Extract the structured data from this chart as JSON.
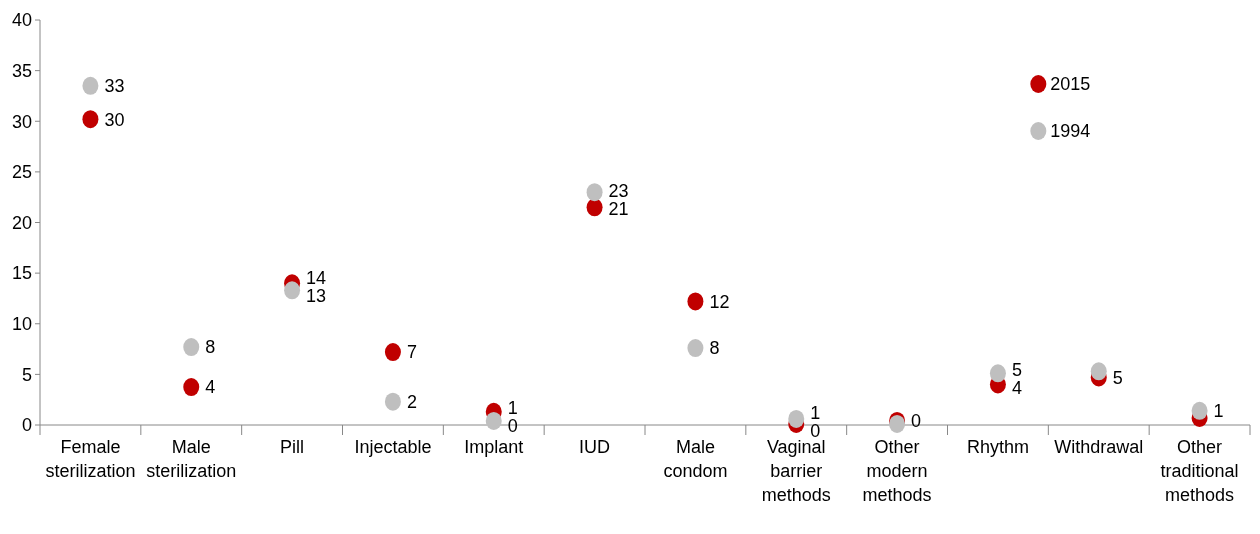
{
  "chart_data": {
    "type": "scatter",
    "categories": [
      "Female sterilization",
      "Male sterilization",
      "Pill",
      "Injectable",
      "Implant",
      "IUD",
      "Male condom",
      "Vaginal barrier methods",
      "Other modern methods",
      "Rhythm",
      "Withdrawal",
      "Other traditional methods"
    ],
    "series": [
      {
        "name": "2015",
        "color": "#c00000",
        "values": [
          30.2,
          3.75,
          14.0,
          7.2,
          1.3,
          21.5,
          12.2,
          0.1,
          0.4,
          4.0,
          4.7,
          0.7
        ],
        "value_labels": [
          "30",
          "4",
          "14",
          "7",
          "1",
          "21",
          "12",
          "0",
          "0",
          "4",
          "5",
          null
        ]
      },
      {
        "name": "1994",
        "color": "#bfbfbf",
        "values": [
          33.5,
          7.7,
          13.3,
          2.3,
          0.4,
          23.0,
          7.6,
          0.6,
          0.1,
          5.1,
          5.3,
          1.4
        ],
        "value_labels": [
          "33",
          "8",
          "13",
          "2",
          "0",
          "23",
          "8",
          "1",
          null,
          "5",
          null,
          "1"
        ]
      }
    ],
    "ylim": [
      0,
      40
    ],
    "yticks": [
      0,
      5,
      10,
      15,
      20,
      25,
      30,
      35,
      40
    ],
    "marker": "circle",
    "grid": false,
    "legend": "top right"
  }
}
